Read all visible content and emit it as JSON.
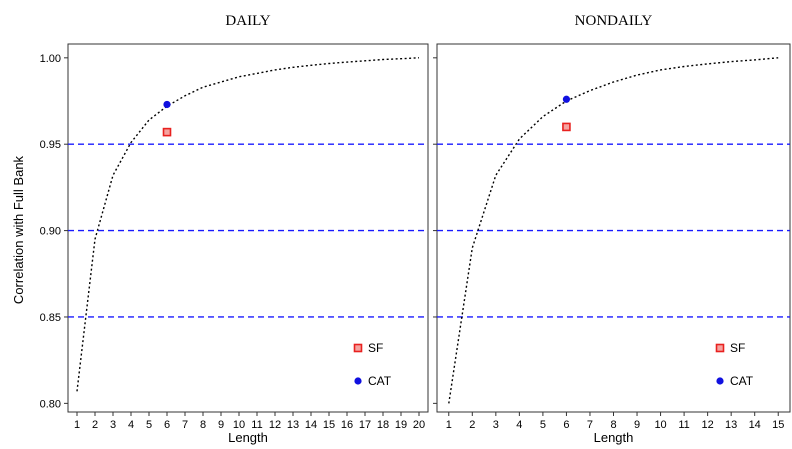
{
  "ylabel": "Correlation with Full Bank",
  "chart_data": [
    {
      "type": "line",
      "title": "DAILY",
      "xlabel": "Length",
      "ylabel": "Correlation with Full Bank",
      "x": [
        1,
        2,
        3,
        4,
        5,
        6,
        7,
        8,
        9,
        10,
        11,
        12,
        13,
        14,
        15,
        16,
        17,
        18,
        19,
        20
      ],
      "xlim": [
        0.5,
        20.5
      ],
      "ylim": [
        0.795,
        1.008
      ],
      "yticks": [
        0.8,
        0.85,
        0.9,
        0.95,
        1.0
      ],
      "ytick_labels": [
        "0.80",
        "0.85",
        "0.90",
        "0.95",
        "1.00"
      ],
      "series": [
        {
          "style": "dotted",
          "color": "#000000",
          "x": [
            1,
            2,
            3,
            4,
            5,
            6,
            7,
            8,
            9,
            10,
            11,
            12,
            13,
            14,
            15,
            16,
            17,
            18,
            19,
            20
          ],
          "values": [
            0.807,
            0.895,
            0.932,
            0.951,
            0.964,
            0.972,
            0.978,
            0.983,
            0.986,
            0.989,
            0.991,
            0.993,
            0.9945,
            0.9957,
            0.9967,
            0.9975,
            0.9983,
            0.999,
            0.9995,
            1.0
          ]
        }
      ],
      "reference_lines": [
        0.95,
        0.9,
        0.85
      ],
      "reference_line_color": "#1a1aff",
      "points": [
        {
          "name": "SF",
          "x": 6,
          "y": 0.957,
          "marker": "square",
          "color": "#e8211f"
        },
        {
          "name": "CAT",
          "x": 6,
          "y": 0.973,
          "marker": "circle",
          "color": "#1010e0"
        }
      ],
      "legend": {
        "placement": "bottom-right",
        "entries": [
          "SF",
          "CAT"
        ]
      }
    },
    {
      "type": "line",
      "title": "NONDAILY",
      "xlabel": "Length",
      "ylabel": "",
      "x": [
        1,
        2,
        3,
        4,
        5,
        6,
        7,
        8,
        9,
        10,
        11,
        12,
        13,
        14,
        15
      ],
      "xlim": [
        0.5,
        15.5
      ],
      "ylim": [
        0.795,
        1.008
      ],
      "yticks": [
        0.8,
        0.85,
        0.9,
        0.95,
        1.0
      ],
      "ytick_labels": [],
      "series": [
        {
          "style": "dotted",
          "color": "#000000",
          "x": [
            1,
            2,
            3,
            4,
            5,
            6,
            7,
            8,
            9,
            10,
            11,
            12,
            13,
            14,
            15
          ],
          "values": [
            0.8,
            0.89,
            0.932,
            0.953,
            0.966,
            0.975,
            0.981,
            0.986,
            0.99,
            0.993,
            0.995,
            0.9965,
            0.9978,
            0.9988,
            1.0
          ]
        }
      ],
      "reference_lines": [
        0.95,
        0.9,
        0.85
      ],
      "reference_line_color": "#1a1aff",
      "points": [
        {
          "name": "SF",
          "x": 6,
          "y": 0.96,
          "marker": "square",
          "color": "#e8211f"
        },
        {
          "name": "CAT",
          "x": 6,
          "y": 0.976,
          "marker": "circle",
          "color": "#1010e0"
        }
      ],
      "legend": {
        "placement": "bottom-right",
        "entries": [
          "SF",
          "CAT"
        ]
      }
    }
  ]
}
